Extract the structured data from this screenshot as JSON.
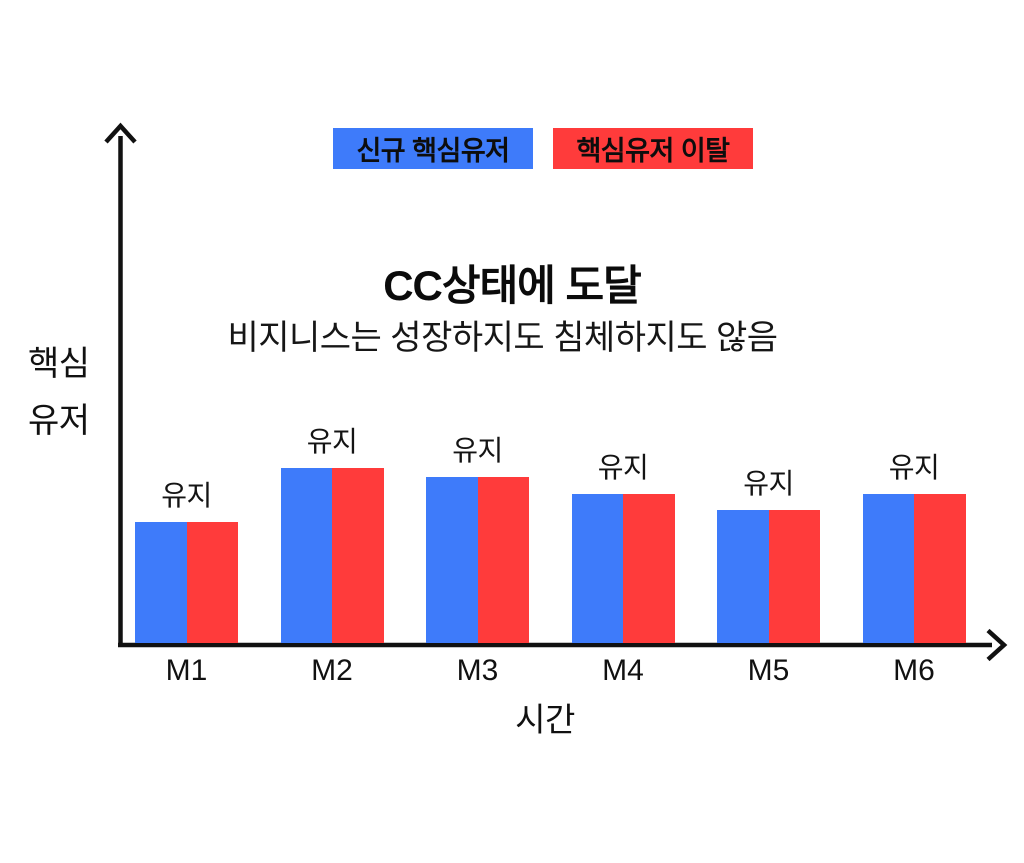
{
  "page": {
    "background": "#ffffff",
    "text_color": "#111111",
    "axis_color": "#111111"
  },
  "chart_data": {
    "type": "bar",
    "title": "CC상태에 도달",
    "subtitle": "비지니스는 성장하지도 침체하지도 않음",
    "xlabel": "시간",
    "ylabel": "핵심 유저",
    "ylabel_lines": [
      "핵심",
      "유저"
    ],
    "categories": [
      "M1",
      "M2",
      "M3",
      "M4",
      "M5",
      "M6"
    ],
    "series": [
      {
        "name": "신규 핵심유저",
        "color": "#3E7BFA",
        "values": [
          121,
          175,
          166,
          149,
          133,
          149
        ]
      },
      {
        "name": "핵심유저 이탈",
        "color": "#FF3B3B",
        "values": [
          121,
          175,
          166,
          149,
          133,
          149
        ]
      }
    ],
    "value_note": "no numeric y-axis shown; values are relative bar heights read from pixels (new users and churn are equal every month)",
    "bar_group_labels": [
      "유지",
      "유지",
      "유지",
      "유지",
      "유지",
      "유지"
    ],
    "legend_position": "top-center",
    "grid": false,
    "axes_arrows": true
  }
}
